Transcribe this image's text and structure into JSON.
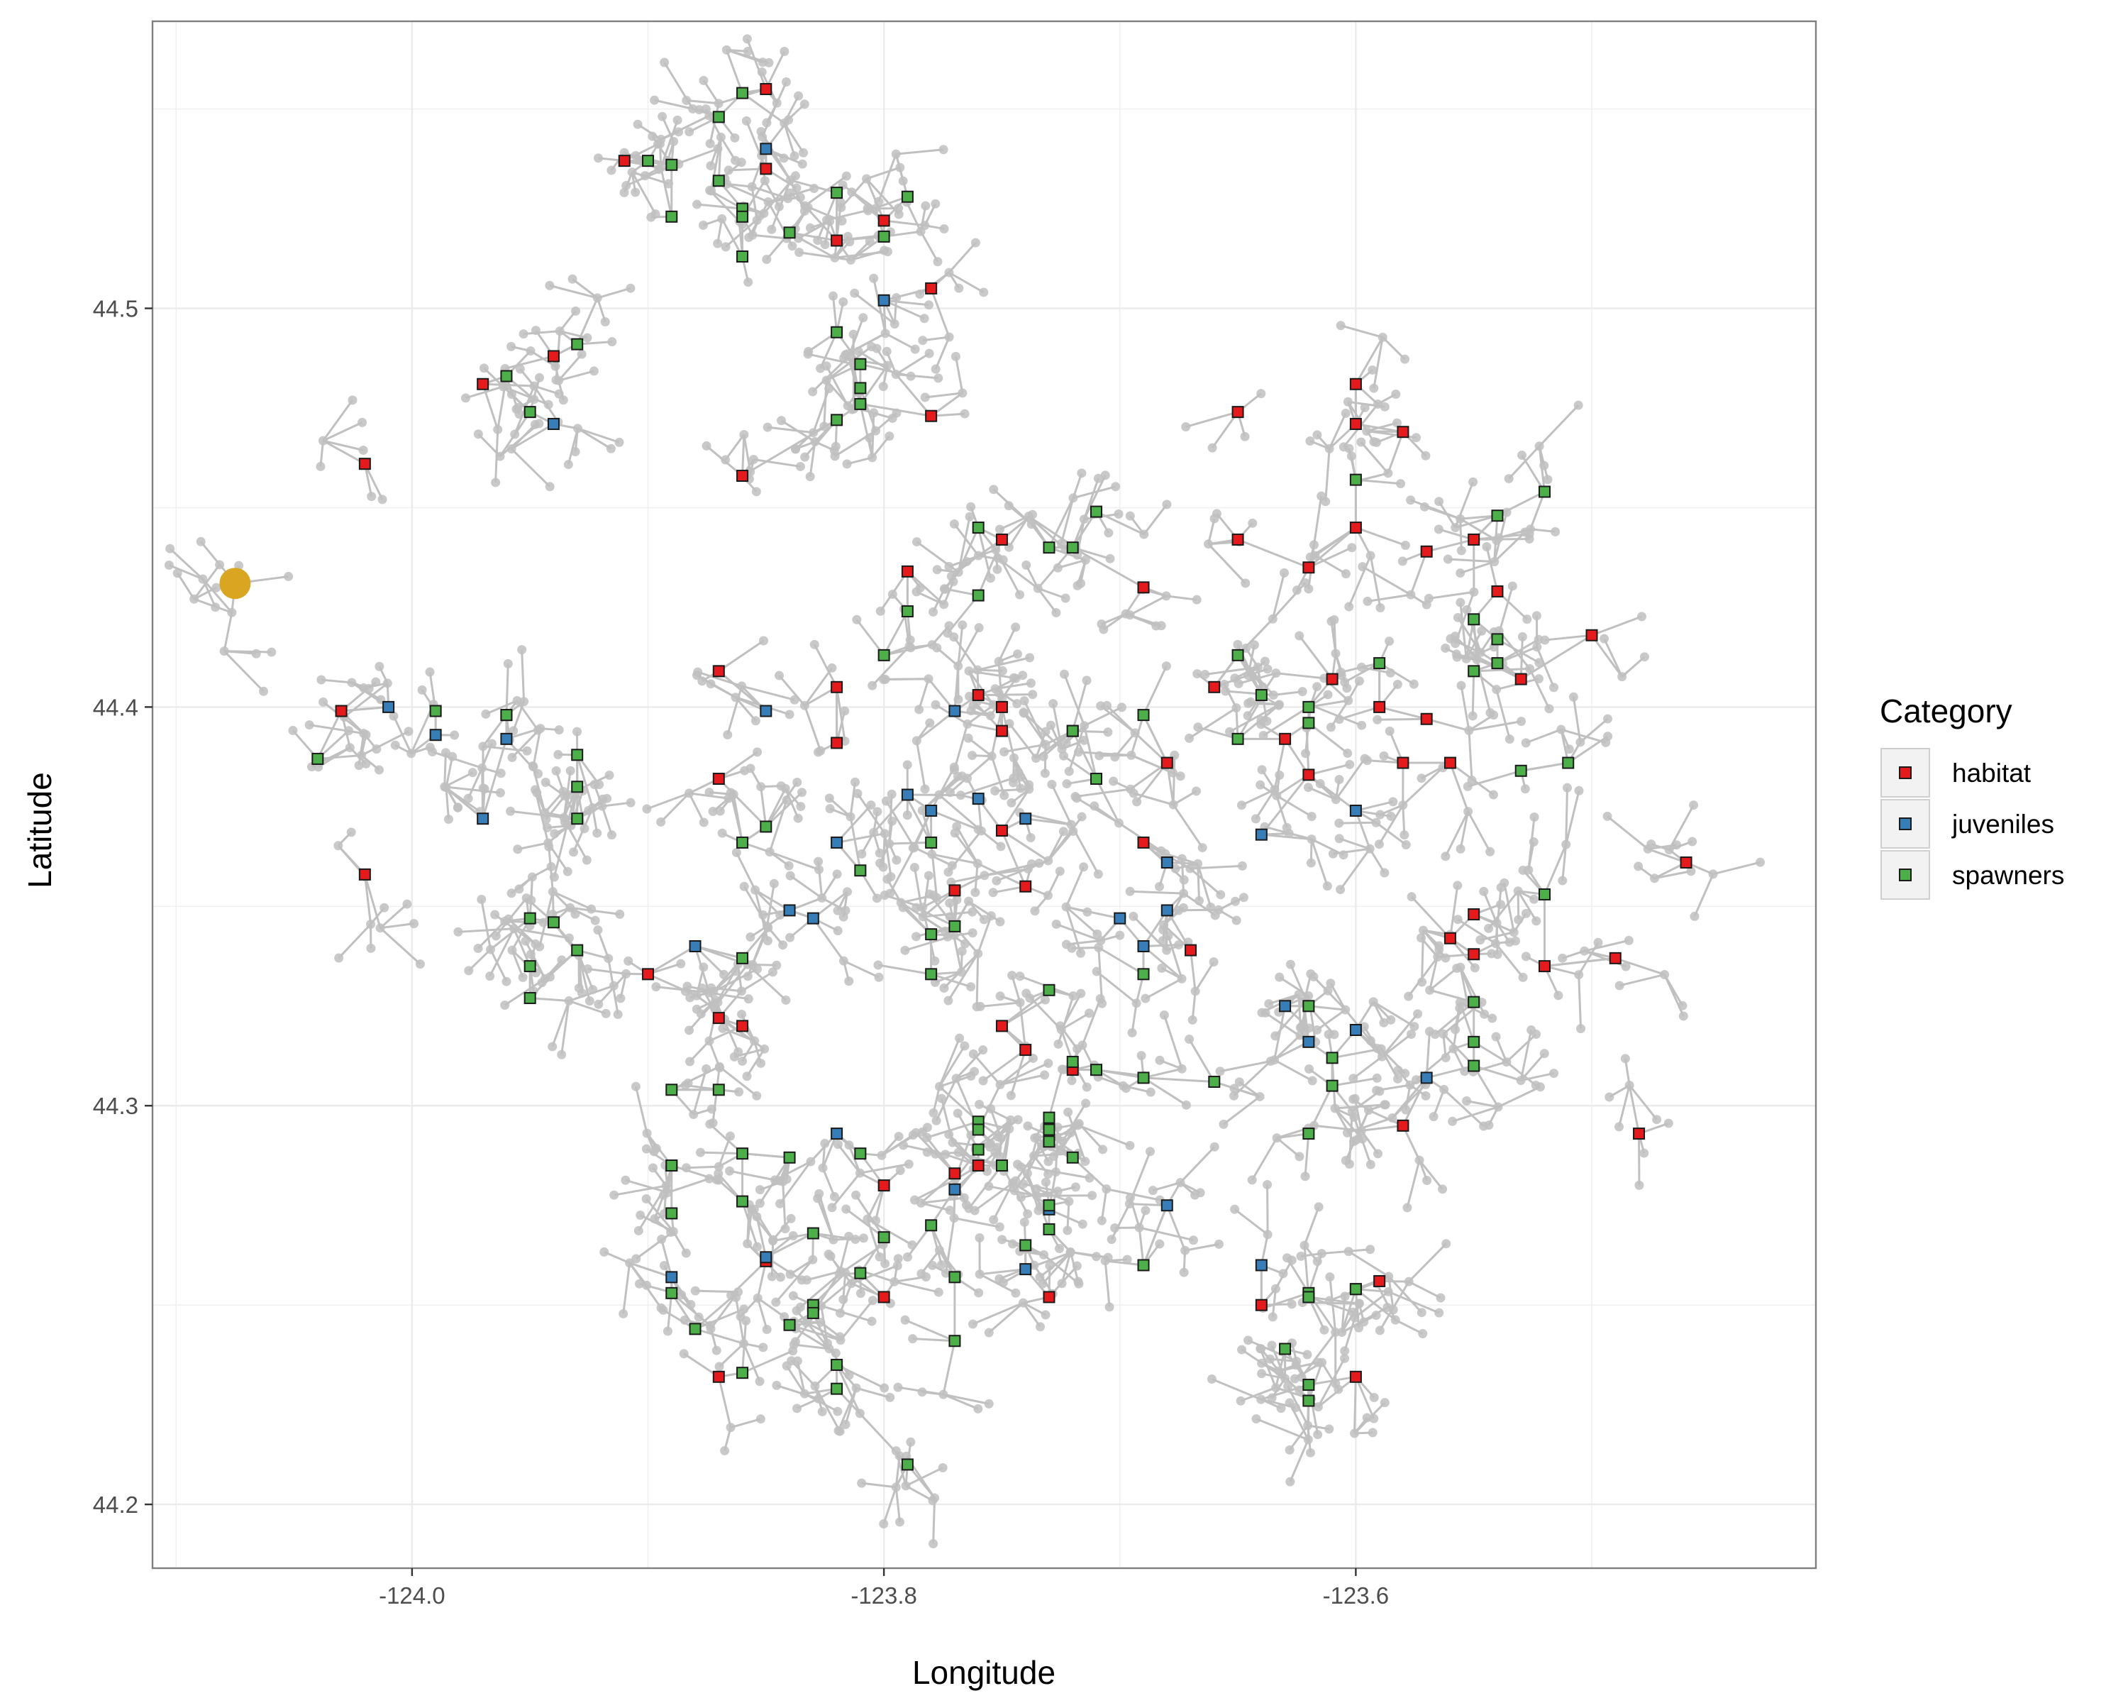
{
  "chart_data": {
    "type": "scatter",
    "title": "",
    "xlabel": "Longitude",
    "ylabel": "Latitude",
    "xlim": [
      -124.11,
      -123.405
    ],
    "ylim": [
      44.184,
      44.572
    ],
    "x_ticks": [
      -124.0,
      -123.8,
      -123.6
    ],
    "x_tick_labels": [
      "-124.0",
      "-123.8",
      "-123.6"
    ],
    "y_ticks": [
      44.2,
      44.3,
      44.4,
      44.5
    ],
    "y_tick_labels": [
      "44.2",
      "44.3",
      "44.4",
      "44.5"
    ],
    "grid": true,
    "legend": {
      "title": "Category",
      "position": "right",
      "entries": [
        "habitat",
        "juveniles",
        "spawners"
      ]
    },
    "colors": {
      "habitat": "#e41a1c",
      "juveniles": "#377eb8",
      "spawners": "#4daf4a",
      "network": "#c0c0c0",
      "outlet": "#daa520"
    },
    "outlet": {
      "x": -124.075,
      "y": 44.431
    },
    "series": [
      {
        "name": "habitat",
        "points": [
          [
            -123.85,
            44.555
          ],
          [
            -123.91,
            44.537
          ],
          [
            -123.85,
            44.535
          ],
          [
            -123.8,
            44.522
          ],
          [
            -123.82,
            44.517
          ],
          [
            -123.78,
            44.505
          ],
          [
            -123.94,
            44.488
          ],
          [
            -123.97,
            44.481
          ],
          [
            -123.6,
            44.481
          ],
          [
            -123.65,
            44.474
          ],
          [
            -123.78,
            44.473
          ],
          [
            -123.6,
            44.471
          ],
          [
            -123.58,
            44.469
          ],
          [
            -124.02,
            44.461
          ],
          [
            -123.86,
            44.458
          ],
          [
            -123.6,
            44.445
          ],
          [
            -123.65,
            44.442
          ],
          [
            -123.55,
            44.442
          ],
          [
            -123.75,
            44.442
          ],
          [
            -123.57,
            44.439
          ],
          [
            -123.79,
            44.434
          ],
          [
            -123.62,
            44.435
          ],
          [
            -123.69,
            44.43
          ],
          [
            -123.54,
            44.429
          ],
          [
            -123.5,
            44.418
          ],
          [
            -123.87,
            44.409
          ],
          [
            -123.53,
            44.407
          ],
          [
            -123.61,
            44.407
          ],
          [
            -123.82,
            44.405
          ],
          [
            -123.66,
            44.405
          ],
          [
            -123.76,
            44.403
          ],
          [
            -123.75,
            44.4
          ],
          [
            -123.59,
            44.4
          ],
          [
            -123.96,
            44.398
          ],
          [
            -124.03,
            44.399
          ],
          [
            -123.57,
            44.397
          ],
          [
            -123.75,
            44.394
          ],
          [
            -123.72,
            44.394
          ],
          [
            -123.63,
            44.392
          ],
          [
            -123.82,
            44.391
          ],
          [
            -123.68,
            44.386
          ],
          [
            -123.58,
            44.386
          ],
          [
            -123.56,
            44.386
          ],
          [
            -123.62,
            44.383
          ],
          [
            -123.87,
            44.382
          ],
          [
            -123.75,
            44.369
          ],
          [
            -123.69,
            44.366
          ],
          [
            -124.02,
            44.358
          ],
          [
            -123.74,
            44.355
          ],
          [
            -123.77,
            44.354
          ],
          [
            -123.46,
            44.361
          ],
          [
            -123.55,
            44.348
          ],
          [
            -123.56,
            44.342
          ],
          [
            -123.55,
            44.338
          ],
          [
            -123.67,
            44.339
          ],
          [
            -123.52,
            44.335
          ],
          [
            -123.49,
            44.337
          ],
          [
            -123.9,
            44.333
          ],
          [
            -123.87,
            44.322
          ],
          [
            -123.86,
            44.32
          ],
          [
            -123.75,
            44.32
          ],
          [
            -123.74,
            44.314
          ],
          [
            -123.72,
            44.309
          ],
          [
            -123.58,
            44.295
          ],
          [
            -123.48,
            44.293
          ],
          [
            -123.89,
            44.285
          ],
          [
            -123.76,
            44.285
          ],
          [
            -123.77,
            44.283
          ],
          [
            -123.8,
            44.28
          ],
          [
            -123.85,
            44.261
          ],
          [
            -123.8,
            44.252
          ],
          [
            -123.73,
            44.252
          ],
          [
            -123.64,
            44.25
          ],
          [
            -123.6,
            44.254
          ],
          [
            -123.59,
            44.256
          ],
          [
            -123.87,
            44.232
          ],
          [
            -123.6,
            44.232
          ]
        ]
      },
      {
        "name": "juveniles",
        "points": [
          [
            -123.85,
            44.54
          ],
          [
            -123.8,
            44.502
          ],
          [
            -123.94,
            44.471
          ],
          [
            -124.01,
            44.4
          ],
          [
            -123.85,
            44.399
          ],
          [
            -123.77,
            44.399
          ],
          [
            -123.99,
            44.393
          ],
          [
            -123.96,
            44.392
          ],
          [
            -123.79,
            44.378
          ],
          [
            -123.76,
            44.377
          ],
          [
            -123.78,
            44.374
          ],
          [
            -123.74,
            44.372
          ],
          [
            -123.97,
            44.372
          ],
          [
            -123.6,
            44.374
          ],
          [
            -123.64,
            44.368
          ],
          [
            -123.82,
            44.366
          ],
          [
            -123.68,
            44.361
          ],
          [
            -123.84,
            44.349
          ],
          [
            -123.83,
            44.347
          ],
          [
            -123.7,
            44.347
          ],
          [
            -123.68,
            44.349
          ],
          [
            -123.69,
            44.34
          ],
          [
            -123.88,
            44.34
          ],
          [
            -123.63,
            44.325
          ],
          [
            -123.6,
            44.319
          ],
          [
            -123.62,
            44.316
          ],
          [
            -123.57,
            44.307
          ],
          [
            -123.82,
            44.293
          ],
          [
            -123.77,
            44.279
          ],
          [
            -123.73,
            44.274
          ],
          [
            -123.68,
            44.275
          ],
          [
            -123.64,
            44.26
          ],
          [
            -123.85,
            44.262
          ],
          [
            -123.74,
            44.259
          ],
          [
            -123.89,
            44.257
          ]
        ]
      },
      {
        "name": "spawners",
        "points": [
          [
            -123.86,
            44.554
          ],
          [
            -123.87,
            44.548
          ],
          [
            -123.9,
            44.537
          ],
          [
            -123.89,
            44.536
          ],
          [
            -123.87,
            44.532
          ],
          [
            -123.82,
            44.529
          ],
          [
            -123.79,
            44.528
          ],
          [
            -123.86,
            44.525
          ],
          [
            -123.89,
            44.523
          ],
          [
            -123.86,
            44.523
          ],
          [
            -123.84,
            44.519
          ],
          [
            -123.8,
            44.518
          ],
          [
            -123.86,
            44.513
          ],
          [
            -123.82,
            44.494
          ],
          [
            -123.93,
            44.491
          ],
          [
            -123.81,
            44.486
          ],
          [
            -123.96,
            44.483
          ],
          [
            -123.81,
            44.48
          ],
          [
            -123.81,
            44.476
          ],
          [
            -123.95,
            44.474
          ],
          [
            -123.82,
            44.472
          ],
          [
            -123.6,
            44.457
          ],
          [
            -123.52,
            44.454
          ],
          [
            -123.71,
            44.449
          ],
          [
            -123.54,
            44.448
          ],
          [
            -123.76,
            44.445
          ],
          [
            -123.72,
            44.44
          ],
          [
            -123.73,
            44.44
          ],
          [
            -123.76,
            44.428
          ],
          [
            -123.79,
            44.424
          ],
          [
            -123.55,
            44.422
          ],
          [
            -123.54,
            44.417
          ],
          [
            -123.8,
            44.413
          ],
          [
            -123.65,
            44.413
          ],
          [
            -123.54,
            44.411
          ],
          [
            -123.59,
            44.411
          ],
          [
            -123.55,
            44.409
          ],
          [
            -123.64,
            44.403
          ],
          [
            -123.62,
            44.4
          ],
          [
            -123.69,
            44.398
          ],
          [
            -123.96,
            44.398
          ],
          [
            -123.99,
            44.399
          ],
          [
            -123.62,
            44.396
          ],
          [
            -123.72,
            44.394
          ],
          [
            -123.65,
            44.392
          ],
          [
            -123.93,
            44.388
          ],
          [
            -124.04,
            44.387
          ],
          [
            -123.51,
            44.386
          ],
          [
            -123.53,
            44.384
          ],
          [
            -123.71,
            44.382
          ],
          [
            -123.93,
            44.38
          ],
          [
            -123.93,
            44.372
          ],
          [
            -123.85,
            44.37
          ],
          [
            -123.86,
            44.366
          ],
          [
            -123.78,
            44.366
          ],
          [
            -123.81,
            44.359
          ],
          [
            -123.52,
            44.353
          ],
          [
            -123.95,
            44.347
          ],
          [
            -123.94,
            44.346
          ],
          [
            -123.77,
            44.345
          ],
          [
            -123.78,
            44.343
          ],
          [
            -123.93,
            44.339
          ],
          [
            -123.86,
            44.337
          ],
          [
            -123.95,
            44.335
          ],
          [
            -123.69,
            44.333
          ],
          [
            -123.78,
            44.333
          ],
          [
            -123.73,
            44.329
          ],
          [
            -123.95,
            44.327
          ],
          [
            -123.55,
            44.326
          ],
          [
            -123.62,
            44.325
          ],
          [
            -123.55,
            44.316
          ],
          [
            -123.61,
            44.312
          ],
          [
            -123.72,
            44.311
          ],
          [
            -123.55,
            44.31
          ],
          [
            -123.71,
            44.309
          ],
          [
            -123.69,
            44.307
          ],
          [
            -123.66,
            44.306
          ],
          [
            -123.61,
            44.305
          ],
          [
            -123.89,
            44.304
          ],
          [
            -123.87,
            44.304
          ],
          [
            -123.73,
            44.297
          ],
          [
            -123.76,
            44.296
          ],
          [
            -123.76,
            44.294
          ],
          [
            -123.73,
            44.294
          ],
          [
            -123.62,
            44.293
          ],
          [
            -123.73,
            44.291
          ],
          [
            -123.76,
            44.289
          ],
          [
            -123.81,
            44.288
          ],
          [
            -123.86,
            44.288
          ],
          [
            -123.84,
            44.287
          ],
          [
            -123.72,
            44.287
          ],
          [
            -123.75,
            44.285
          ],
          [
            -123.89,
            44.285
          ],
          [
            -123.86,
            44.276
          ],
          [
            -123.73,
            44.275
          ],
          [
            -123.89,
            44.273
          ],
          [
            -123.78,
            44.27
          ],
          [
            -123.73,
            44.269
          ],
          [
            -123.83,
            44.268
          ],
          [
            -123.8,
            44.267
          ],
          [
            -123.74,
            44.265
          ],
          [
            -123.69,
            44.26
          ],
          [
            -123.81,
            44.258
          ],
          [
            -123.77,
            44.257
          ],
          [
            -123.89,
            44.253
          ],
          [
            -123.62,
            44.253
          ],
          [
            -123.6,
            44.254
          ],
          [
            -123.62,
            44.252
          ],
          [
            -123.83,
            44.25
          ],
          [
            -123.83,
            44.248
          ],
          [
            -123.84,
            44.245
          ],
          [
            -123.88,
            44.244
          ],
          [
            -123.77,
            44.241
          ],
          [
            -123.63,
            44.239
          ],
          [
            -123.82,
            44.235
          ],
          [
            -123.86,
            44.233
          ],
          [
            -123.82,
            44.229
          ],
          [
            -123.62,
            44.23
          ],
          [
            -123.62,
            44.226
          ],
          [
            -123.79,
            44.21
          ]
        ]
      }
    ]
  }
}
